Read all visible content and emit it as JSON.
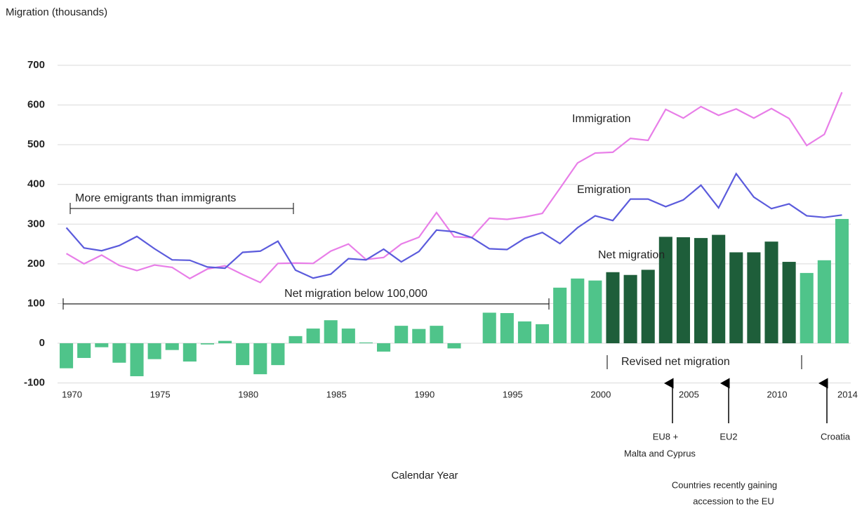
{
  "chart_data": {
    "type": "combo",
    "y_label": "Migration (thousands)",
    "x_label": "Calendar Year",
    "x": [
      1970,
      1971,
      1972,
      1973,
      1974,
      1975,
      1976,
      1977,
      1978,
      1979,
      1980,
      1981,
      1982,
      1983,
      1984,
      1985,
      1986,
      1987,
      1988,
      1989,
      1990,
      1991,
      1992,
      1993,
      1994,
      1995,
      1996,
      1997,
      1998,
      1999,
      2000,
      2001,
      2002,
      2003,
      2004,
      2005,
      2006,
      2007,
      2008,
      2009,
      2010,
      2011,
      2012,
      2013,
      2014
    ],
    "xlim": [
      1969.5,
      2014.5
    ],
    "xticks": [
      1970,
      1975,
      1980,
      1985,
      1990,
      1995,
      2000,
      2005,
      2010,
      2014
    ],
    "ylim": [
      -100,
      700
    ],
    "yticks": [
      -100,
      0,
      100,
      200,
      300,
      400,
      500,
      600,
      700
    ],
    "grid": true,
    "series": [
      {
        "name": "Net migration",
        "type": "bar",
        "color": "#4fc48a",
        "values": [
          -63,
          -37,
          -10,
          -49,
          -83,
          -40,
          -17,
          -46,
          -3,
          6,
          -55,
          -78,
          -55,
          18,
          37,
          58,
          37,
          2,
          -21,
          44,
          36,
          44,
          -13,
          null,
          77,
          76,
          55,
          48,
          140,
          163,
          158,
          null,
          null,
          null,
          null,
          null,
          null,
          null,
          null,
          null,
          null,
          null,
          177,
          209,
          313
        ]
      },
      {
        "name": "Revised net migration",
        "type": "bar",
        "color": "#1e5e3a",
        "values": [
          null,
          null,
          null,
          null,
          null,
          null,
          null,
          null,
          null,
          null,
          null,
          null,
          null,
          null,
          null,
          null,
          null,
          null,
          null,
          null,
          null,
          null,
          null,
          null,
          null,
          null,
          null,
          null,
          null,
          null,
          null,
          179,
          172,
          185,
          268,
          267,
          265,
          273,
          229,
          229,
          256,
          205,
          null,
          null,
          null
        ]
      },
      {
        "name": "Immigration",
        "type": "line",
        "color": "#e87ee8",
        "values": [
          226,
          200,
          222,
          196,
          183,
          197,
          191,
          163,
          187,
          195,
          173,
          153,
          201,
          202,
          201,
          232,
          250,
          211,
          216,
          250,
          267,
          329,
          268,
          266,
          315,
          312,
          318,
          327,
          390,
          454,
          479,
          481,
          516,
          511,
          589,
          567,
          596,
          574,
          590,
          567,
          591,
          566,
          498,
          526,
          632
        ]
      },
      {
        "name": "Emigration",
        "type": "line",
        "color": "#5b5bdc",
        "values": [
          291,
          240,
          233,
          246,
          269,
          238,
          210,
          209,
          192,
          189,
          229,
          232,
          257,
          184,
          164,
          174,
          213,
          210,
          237,
          205,
          231,
          285,
          281,
          266,
          238,
          236,
          264,
          279,
          251,
          291,
          321,
          309,
          363,
          363,
          344,
          361,
          398,
          341,
          427,
          368,
          339,
          351,
          321,
          317,
          323
        ]
      }
    ],
    "annotations": {
      "more_emigrants": "More emigrants than immigrants",
      "below_100k": "Net migration below 100,000",
      "eu8": [
        "EU8 +",
        "Malta and Cyprus"
      ],
      "eu2": "EU2",
      "croatia": "Croatia",
      "accession": [
        "Countries recently gaining",
        "accession to the EU"
      ]
    }
  }
}
